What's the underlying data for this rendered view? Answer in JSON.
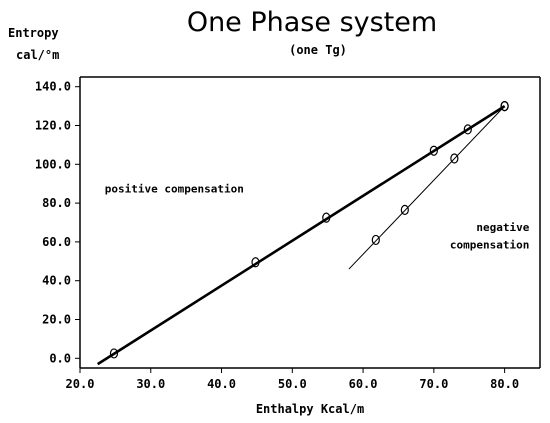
{
  "chart_data": {
    "type": "scatter",
    "title": "One Phase system",
    "subtitle": "(one Tg)",
    "ylabel_line1": "Entropy",
    "ylabel_line2": "cal/°m",
    "xlabel": "Enthalpy Kcal/m",
    "xlim": [
      20.0,
      85.0
    ],
    "ylim": [
      -5.0,
      145.0
    ],
    "x_ticks": [
      20.0,
      30.0,
      40.0,
      50.0,
      60.0,
      70.0,
      80.0
    ],
    "x_tick_labels": [
      "20.0",
      "30.0",
      "40.0",
      "50.0",
      "60.0",
      "70.0",
      "80.0"
    ],
    "y_ticks": [
      0.0,
      20.0,
      40.0,
      60.0,
      80.0,
      100.0,
      120.0,
      140.0
    ],
    "y_tick_labels": [
      "0.0",
      "20.0",
      "40.0",
      "60.0",
      "80.0",
      "100.0",
      "120.0",
      "140.0"
    ],
    "grid": false,
    "series": [
      {
        "points": [
          [
            24.8,
            2.5
          ],
          [
            44.8,
            49.5
          ],
          [
            54.8,
            72.5
          ],
          [
            70.0,
            107.0
          ],
          [
            74.8,
            118.0
          ],
          [
            80.0,
            130.0
          ]
        ],
        "line": [
          [
            22.5,
            -3.0
          ],
          [
            80.0,
            130.0
          ]
        ],
        "line_style": "thick"
      },
      {
        "points": [
          [
            61.8,
            61.0
          ],
          [
            65.9,
            76.5
          ],
          [
            72.9,
            103.0
          ],
          [
            80.0,
            130.0
          ]
        ],
        "line": [
          [
            58.0,
            46.0
          ],
          [
            80.0,
            130.0
          ]
        ],
        "line_style": "thin"
      }
    ],
    "annotations": [
      {
        "text": "positive compensation",
        "anchor": [
          23.5,
          85.5
        ]
      },
      {
        "text": "negative",
        "anchor": [
          83.5,
          65.5
        ]
      },
      {
        "text": "compensation",
        "anchor": [
          83.5,
          56.5
        ]
      }
    ]
  }
}
